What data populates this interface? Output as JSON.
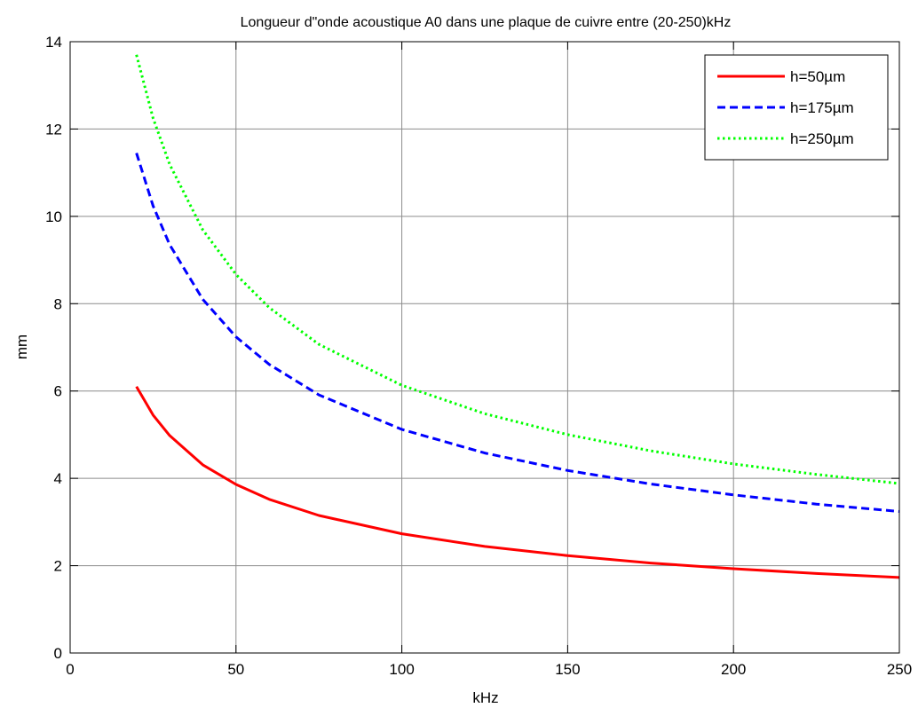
{
  "chart_data": {
    "type": "line",
    "title": "Longueur d\"onde acoustique A0 dans une plaque de cuivre entre (20-250)kHz",
    "xlabel": "kHz",
    "ylabel": "mm",
    "xlim": [
      0,
      250
    ],
    "ylim": [
      0,
      14
    ],
    "xticks": [
      0,
      50,
      100,
      150,
      200,
      250
    ],
    "yticks": [
      0,
      2,
      4,
      6,
      8,
      10,
      12,
      14
    ],
    "grid": true,
    "legend_position": "top-right",
    "series": [
      {
        "name": "h=50µm",
        "color": "#ff0000",
        "dash": "solid",
        "x": [
          20,
          25,
          30,
          40,
          50,
          60,
          75,
          100,
          125,
          150,
          175,
          200,
          225,
          250
        ],
        "y": [
          6.1,
          5.45,
          4.98,
          4.31,
          3.86,
          3.52,
          3.15,
          2.73,
          2.44,
          2.23,
          2.06,
          1.93,
          1.82,
          1.73
        ]
      },
      {
        "name": "h=175µm",
        "color": "#0000ff",
        "dash": "dashed",
        "x": [
          20,
          25,
          30,
          40,
          50,
          60,
          75,
          100,
          125,
          150,
          175,
          200,
          225,
          250
        ],
        "y": [
          11.45,
          10.24,
          9.35,
          8.1,
          7.24,
          6.61,
          5.91,
          5.12,
          4.58,
          4.18,
          3.87,
          3.62,
          3.41,
          3.24
        ]
      },
      {
        "name": "h=250µm",
        "color": "#00ff00",
        "dash": "dotted",
        "x": [
          20,
          25,
          30,
          40,
          50,
          60,
          75,
          100,
          125,
          150,
          175,
          200,
          225,
          250
        ],
        "y": [
          13.7,
          12.25,
          11.19,
          9.69,
          8.67,
          7.91,
          7.07,
          6.13,
          5.48,
          5.0,
          4.63,
          4.33,
          4.09,
          3.88
        ]
      }
    ]
  }
}
